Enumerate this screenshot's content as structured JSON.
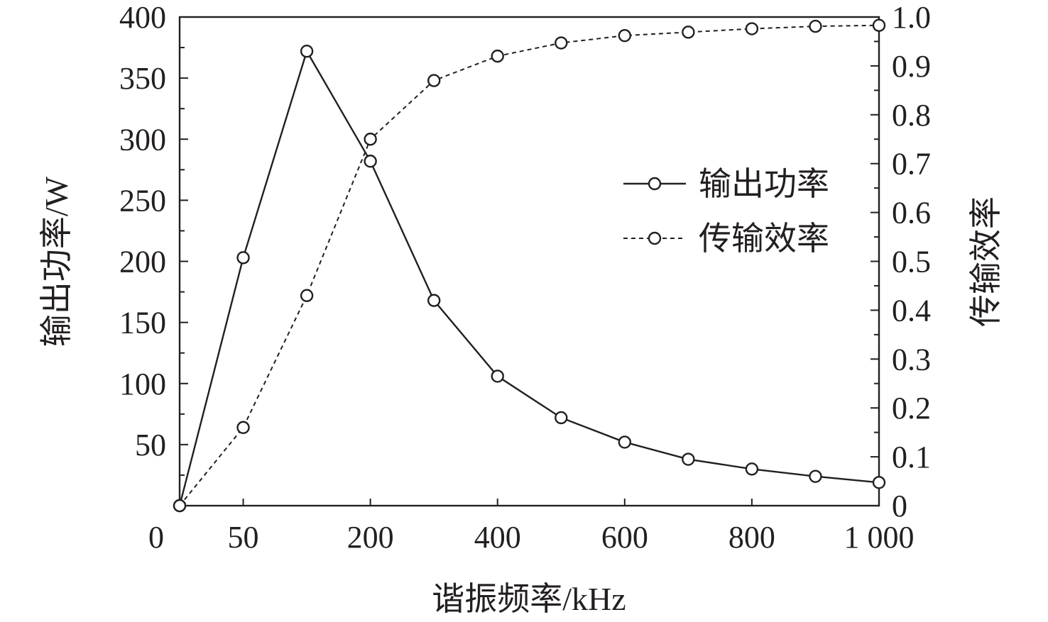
{
  "chart_data": {
    "type": "line",
    "xlabel": "谐振频率/kHz",
    "ylabel_left": "输出功率/W",
    "ylabel_right": "传输效率",
    "x_tick_labels": [
      "0",
      "50",
      "",
      "200",
      "400",
      "600",
      "800",
      "1 000"
    ],
    "x_categories": [
      "0",
      "50",
      "100",
      "200",
      "300",
      "400",
      "500",
      "600",
      "700",
      "800",
      "900",
      "1000"
    ],
    "y_left_ticks": [
      "50",
      "100",
      "150",
      "200",
      "250",
      "300",
      "350",
      "400"
    ],
    "y_left_range": [
      0,
      400
    ],
    "y_right_ticks": [
      "0",
      "0.1",
      "0.2",
      "0.3",
      "0.4",
      "0.5",
      "0.6",
      "0.7",
      "0.8",
      "0.9",
      "1.0"
    ],
    "y_right_range": [
      0,
      1.0
    ],
    "legend_position": "right-center",
    "grid": false,
    "series": [
      {
        "name": "输出功率",
        "axis": "left",
        "line_style": "solid",
        "color": "#231f20",
        "marker": "circle",
        "values": [
          0,
          203,
          372,
          282,
          168,
          106,
          72,
          52,
          38,
          30,
          24,
          19
        ]
      },
      {
        "name": "传输效率",
        "axis": "right",
        "line_style": "dashed",
        "color": "#231f20",
        "marker": "circle",
        "values": [
          0,
          0.16,
          0.43,
          0.75,
          0.87,
          0.92,
          0.947,
          0.962,
          0.969,
          0.976,
          0.981,
          0.983
        ]
      }
    ]
  }
}
